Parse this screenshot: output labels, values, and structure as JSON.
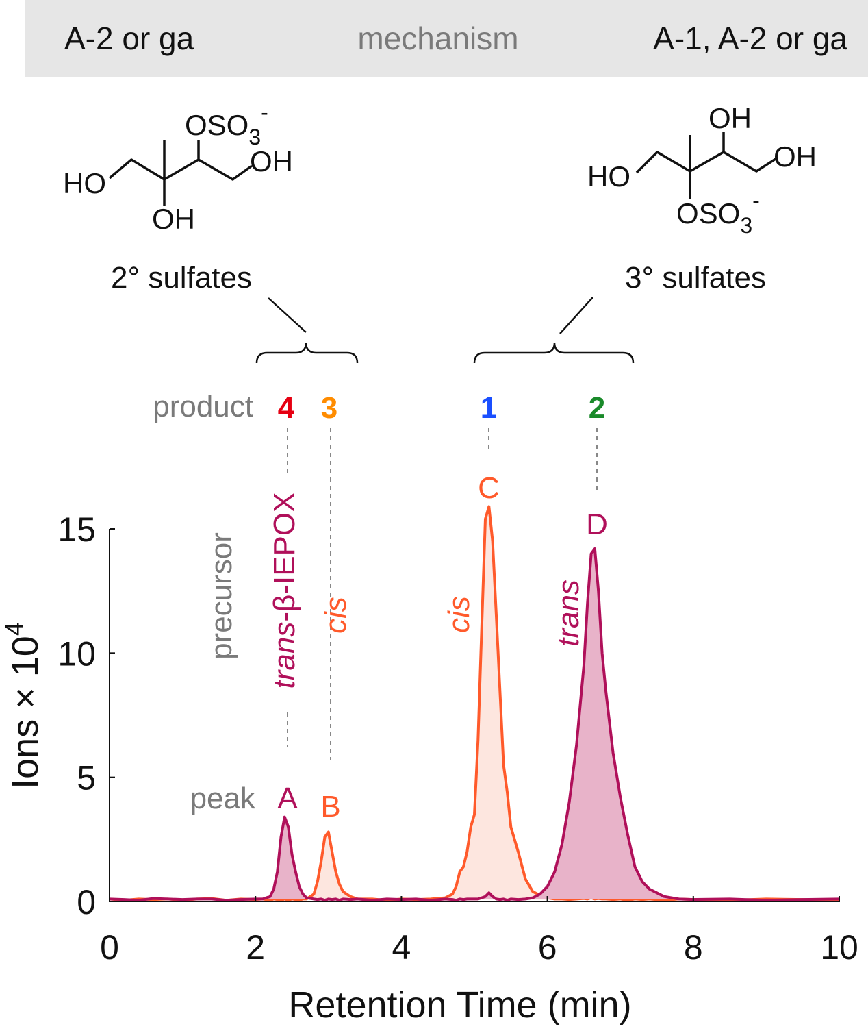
{
  "header": {
    "left": "A-2 or ga",
    "center": "mechanism",
    "right": "A-1, A-2 or ga"
  },
  "structures": [
    {
      "groups": [
        "HO",
        "OH",
        "OH"
      ],
      "sulfate": {
        "main": "OSO",
        "sub": "3",
        "sup": "-"
      },
      "caption": "2° sulfates"
    },
    {
      "groups": [
        "HO",
        "OH",
        "OH"
      ],
      "sulfate": {
        "main": "OSO",
        "sub": "3",
        "sup": "-"
      },
      "caption": "3° sulfates"
    }
  ],
  "annotations": {
    "product": "product",
    "precursor": "precursor",
    "peak": "peak",
    "products": [
      "4",
      "3",
      "1",
      "2"
    ],
    "peaks": [
      "A",
      "B",
      "C",
      "D"
    ],
    "iepox": "-β-IEPOX"
  },
  "chart_data": {
    "type": "line",
    "xlabel": "Retention Time (min)",
    "ylabel": {
      "text": "Ions × 10",
      "sup": "4"
    },
    "x": [
      0,
      0.2,
      0.4,
      0.6,
      0.8,
      1.0,
      1.2,
      1.4,
      1.6,
      1.8,
      2.0,
      2.1,
      2.2,
      2.25,
      2.3,
      2.35,
      2.4,
      2.45,
      2.5,
      2.55,
      2.6,
      2.65,
      2.7,
      2.8,
      2.85,
      2.9,
      2.95,
      3.0,
      3.05,
      3.1,
      3.15,
      3.2,
      3.3,
      3.4,
      3.6,
      3.8,
      4.0,
      4.2,
      4.4,
      4.6,
      4.7,
      4.75,
      4.8,
      4.85,
      4.9,
      4.95,
      5.0,
      5.05,
      5.1,
      5.15,
      5.2,
      5.25,
      5.3,
      5.35,
      5.4,
      5.45,
      5.5,
      5.6,
      5.7,
      5.8,
      5.9,
      6.0,
      6.1,
      6.2,
      6.3,
      6.4,
      6.5,
      6.55,
      6.6,
      6.65,
      6.7,
      6.75,
      6.8,
      6.9,
      7.0,
      7.1,
      7.2,
      7.3,
      7.4,
      7.6,
      7.8,
      8.0,
      8.5,
      9.0,
      9.5,
      10.0
    ],
    "series": [
      {
        "name": "cis",
        "color": "#ff5a2b",
        "fill": "#fde6df",
        "values": [
          0.1,
          0.05,
          0.1,
          0.08,
          0.1,
          0.05,
          0.1,
          0.12,
          0.05,
          0.1,
          0.08,
          0.1,
          0.05,
          0.1,
          0.08,
          0.05,
          0.1,
          0.05,
          0.1,
          0.08,
          0.05,
          0.1,
          0.1,
          0.3,
          0.8,
          1.6,
          2.6,
          2.8,
          2.0,
          1.2,
          0.7,
          0.4,
          0.2,
          0.1,
          0.1,
          0.05,
          0.1,
          0.08,
          0.1,
          0.15,
          0.3,
          0.6,
          1.2,
          1.4,
          2.0,
          3.0,
          3.5,
          6.5,
          11,
          15.4,
          15.9,
          14.5,
          11.5,
          8.5,
          5.5,
          4.4,
          3.0,
          2.0,
          0.9,
          0.4,
          0.25,
          0.15,
          0.1,
          0.1,
          0.08,
          0.1,
          0.12,
          0.1,
          0.15,
          0.1,
          0.12,
          0.1,
          0.1,
          0.08,
          0.1,
          0.05,
          0.1,
          0.08,
          0.1,
          0.05,
          0.1,
          0.08,
          0.05,
          0.1,
          0.08,
          0.05
        ]
      },
      {
        "name": "trans",
        "color": "#b0105a",
        "fill": "#e8b3c9",
        "values": [
          0.1,
          0.08,
          0.05,
          0.12,
          0.1,
          0.08,
          0.1,
          0.1,
          0.05,
          0.08,
          0.1,
          0.1,
          0.2,
          0.5,
          1.2,
          2.6,
          3.4,
          3.0,
          1.9,
          1.2,
          0.6,
          0.3,
          0.15,
          0.1,
          0.08,
          0.1,
          0.05,
          0.1,
          0.08,
          0.1,
          0.05,
          0.1,
          0.08,
          0.1,
          0.05,
          0.1,
          0.08,
          0.1,
          0.05,
          0.1,
          0.08,
          0.05,
          0.1,
          0.08,
          0.1,
          0.1,
          0.1,
          0.1,
          0.15,
          0.2,
          0.35,
          0.2,
          0.1,
          0.08,
          0.1,
          0.05,
          0.1,
          0.08,
          0.1,
          0.15,
          0.3,
          0.6,
          1.2,
          2.3,
          4.0,
          6.3,
          9.5,
          12.0,
          14.0,
          14.2,
          12.5,
          10.0,
          8.5,
          6.0,
          4.2,
          2.7,
          1.4,
          0.8,
          0.5,
          0.2,
          0.1,
          0.08,
          0.1,
          0.05,
          0.08,
          0.1
        ]
      }
    ],
    "xlim": [
      0,
      10
    ],
    "xticks": [
      0,
      2,
      4,
      6,
      8,
      10
    ],
    "ylim": [
      0,
      15
    ],
    "yticks": [
      0,
      5,
      10,
      15
    ]
  }
}
